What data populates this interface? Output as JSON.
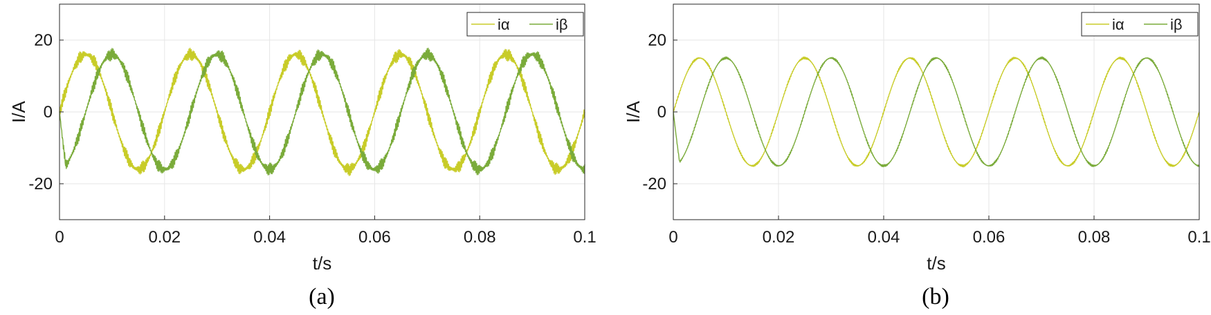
{
  "chart_data": [
    {
      "type": "line",
      "caption": "(a)",
      "xlabel": "t/s",
      "ylabel": "I/A",
      "xlim": [
        0,
        0.1
      ],
      "ylim": [
        -30,
        30
      ],
      "xticks": [
        0,
        0.02,
        0.04,
        0.06,
        0.08,
        0.1
      ],
      "xtick_labels": [
        "0",
        "0.02",
        "0.04",
        "0.06",
        "0.08",
        "0.1"
      ],
      "yticks": [
        -20,
        0,
        20
      ],
      "ytick_labels": [
        "-20",
        "0",
        "20"
      ],
      "grid": true,
      "legend_position": "top-right",
      "series": [
        {
          "name": "iα",
          "color": "#c8cc28",
          "amplitude": 16,
          "frequency_hz": 50,
          "phase_deg": 0,
          "ripple": 1.8
        },
        {
          "name": "iβ",
          "color": "#7aab3a",
          "amplitude": 16,
          "frequency_hz": 50,
          "phase_deg": -90,
          "ripple": 1.8
        }
      ]
    },
    {
      "type": "line",
      "caption": "(b)",
      "xlabel": "t/s",
      "ylabel": "I/A",
      "xlim": [
        0,
        0.1
      ],
      "ylim": [
        -30,
        30
      ],
      "xticks": [
        0,
        0.02,
        0.04,
        0.06,
        0.08,
        0.1
      ],
      "xtick_labels": [
        "0",
        "0.02",
        "0.04",
        "0.06",
        "0.08",
        "0.1"
      ],
      "yticks": [
        -20,
        0,
        20
      ],
      "ytick_labels": [
        "-20",
        "0",
        "20"
      ],
      "grid": true,
      "legend_position": "top-right",
      "series": [
        {
          "name": "iα",
          "color": "#c8cc28",
          "amplitude": 15,
          "frequency_hz": 50,
          "phase_deg": 0,
          "ripple": 0.35
        },
        {
          "name": "iβ",
          "color": "#7aab3a",
          "amplitude": 15,
          "frequency_hz": 50,
          "phase_deg": -90,
          "ripple": 0.35
        }
      ]
    }
  ]
}
